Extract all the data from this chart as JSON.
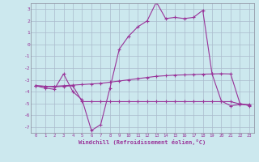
{
  "background_color": "#cce8ee",
  "grid_color": "#aabbcc",
  "line_color": "#993399",
  "xlabel": "Windchill (Refroidissement éolien,°C)",
  "ylim": [
    -7.5,
    3.5
  ],
  "xlim": [
    -0.5,
    23.5
  ],
  "yticks": [
    3,
    2,
    1,
    0,
    -1,
    -2,
    -3,
    -4,
    -5,
    -6,
    -7
  ],
  "xticks": [
    0,
    1,
    2,
    3,
    4,
    5,
    6,
    7,
    8,
    9,
    10,
    11,
    12,
    13,
    14,
    15,
    16,
    17,
    18,
    19,
    20,
    21,
    22,
    23
  ],
  "line1_x": [
    0,
    1,
    2,
    3,
    4,
    5,
    6,
    7,
    8,
    9,
    10,
    11,
    12,
    13,
    14,
    15,
    16,
    17,
    18,
    19,
    20,
    21,
    22,
    23
  ],
  "line1_y": [
    -3.5,
    -3.7,
    -3.8,
    -2.5,
    -4.0,
    -4.7,
    -7.3,
    -6.8,
    -3.7,
    -0.4,
    0.7,
    1.5,
    2.0,
    3.6,
    2.2,
    2.3,
    2.2,
    2.3,
    2.9,
    -2.5,
    -4.8,
    -5.2,
    -5.1,
    -5.1
  ],
  "line2_x": [
    0,
    1,
    2,
    3,
    4,
    5,
    6,
    7,
    8,
    9,
    10,
    11,
    12,
    13,
    14,
    15,
    16,
    17,
    18,
    19,
    20,
    21,
    22,
    23
  ],
  "line2_y": [
    -3.5,
    -3.55,
    -3.55,
    -3.5,
    -3.45,
    -3.4,
    -3.35,
    -3.3,
    -3.2,
    -3.1,
    -3.0,
    -2.9,
    -2.8,
    -2.7,
    -2.65,
    -2.6,
    -2.58,
    -2.55,
    -2.52,
    -2.5,
    -2.48,
    -2.5,
    -5.0,
    -5.2
  ],
  "line3_x": [
    0,
    1,
    2,
    3,
    4,
    5,
    6,
    7,
    8,
    9,
    10,
    11,
    12,
    13,
    14,
    15,
    16,
    17,
    18,
    19,
    20,
    21,
    22,
    23
  ],
  "line3_y": [
    -3.5,
    -3.55,
    -3.6,
    -3.55,
    -3.5,
    -4.85,
    -4.85,
    -4.85,
    -4.85,
    -4.85,
    -4.85,
    -4.85,
    -4.85,
    -4.85,
    -4.85,
    -4.85,
    -4.85,
    -4.85,
    -4.85,
    -4.85,
    -4.85,
    -4.85,
    -5.05,
    -5.15
  ]
}
